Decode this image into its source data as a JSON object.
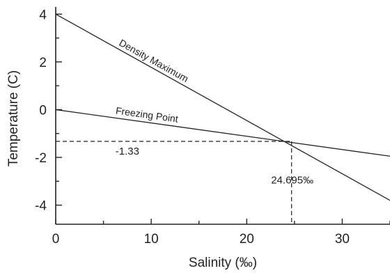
{
  "chart_data": {
    "type": "line",
    "xlabel": "Salinity (‰)",
    "ylabel": "Temperature (C)",
    "xlim": [
      0,
      35
    ],
    "ylim": [
      -4.8,
      4.3
    ],
    "x_ticks": [
      0,
      10,
      20,
      30
    ],
    "y_ticks": [
      4,
      2,
      0,
      -2,
      -4
    ],
    "grid": false,
    "series": [
      {
        "name": "Density Maximum",
        "x": [
          0,
          35
        ],
        "y": [
          4,
          -3.8
        ]
      },
      {
        "name": "Freezing Point",
        "x": [
          0,
          35
        ],
        "y": [
          0,
          -1.95
        ]
      }
    ],
    "intersection": {
      "x": 24.695,
      "y": -1.33
    },
    "annotations": {
      "y_value": "-1.33",
      "x_value": "24.695‰"
    }
  }
}
